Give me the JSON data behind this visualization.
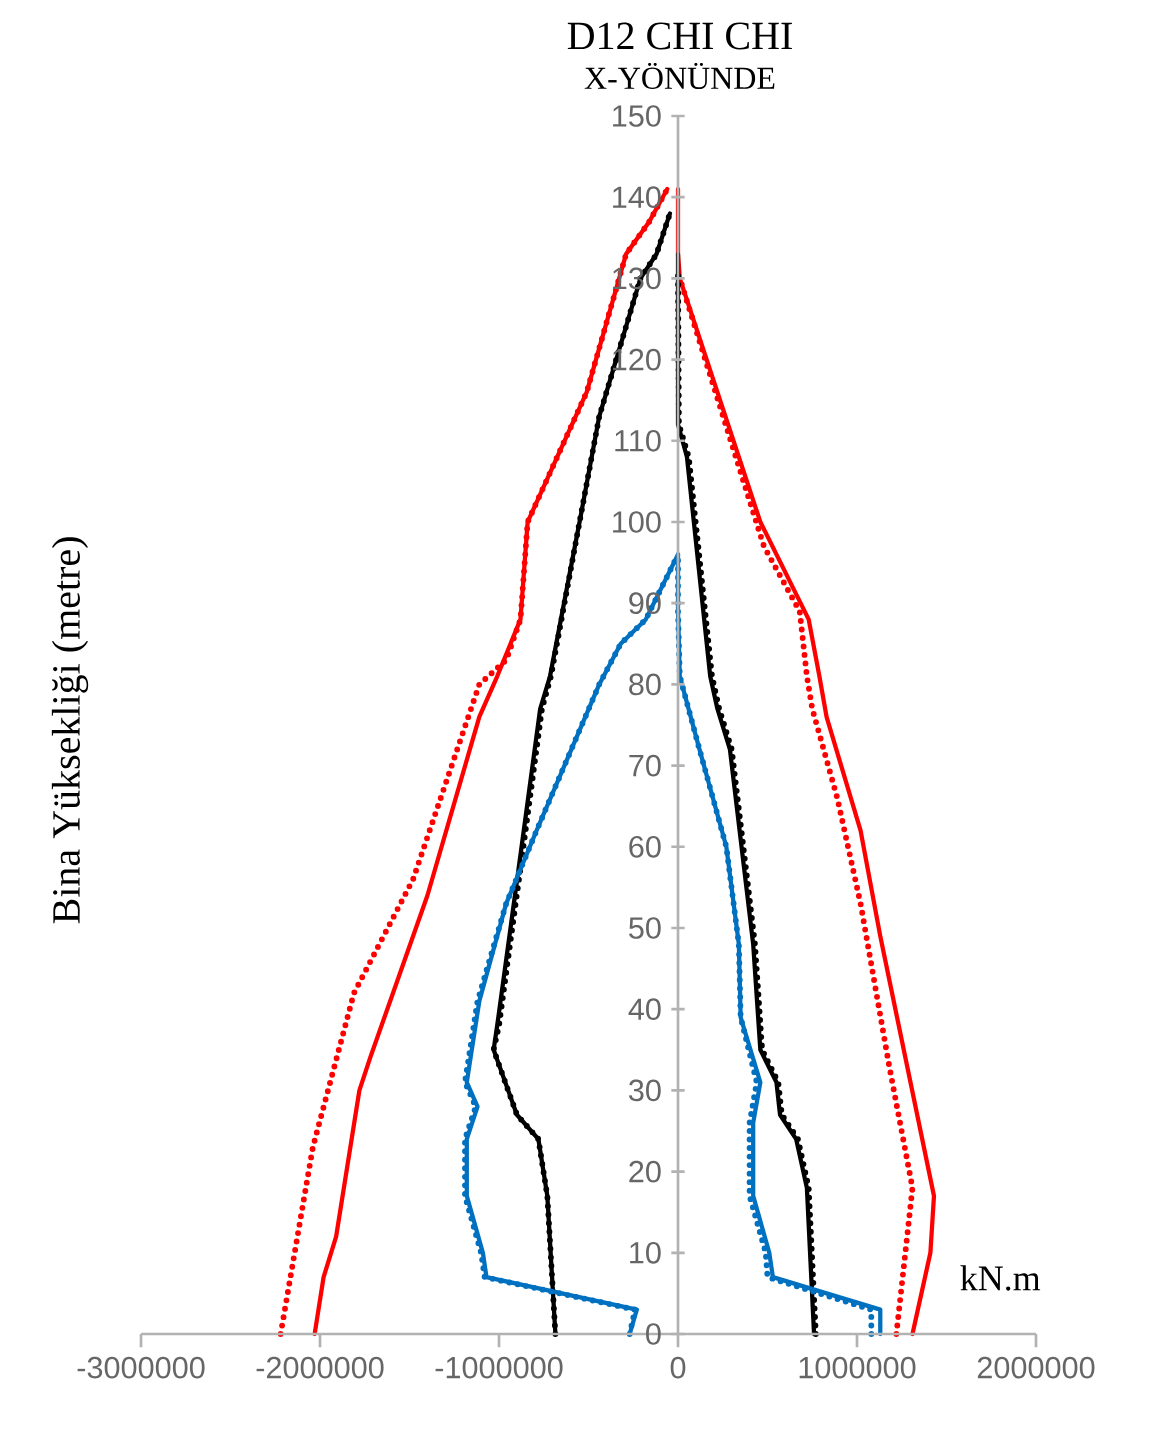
{
  "chart_data": {
    "type": "line",
    "title": "D12 CHI CHI",
    "subtitle": "X-YÖNÜNDE",
    "ylabel": "Bina Yüksekliği (metre)",
    "annotations": [
      "kN.m"
    ],
    "xlim": [
      -3000000,
      2000000
    ],
    "ylim": [
      0,
      150
    ],
    "xticks": [
      -3000000,
      -2000000,
      -1000000,
      0,
      1000000,
      2000000
    ],
    "yticks": [
      0,
      10,
      20,
      30,
      40,
      50,
      60,
      70,
      80,
      90,
      100,
      110,
      120,
      130,
      140,
      150
    ],
    "grid": false,
    "marker": "none",
    "series": [
      {
        "color": "#ff0000",
        "line_style": "solid",
        "x": [
          -2030000,
          -1980000,
          -1910000,
          -1780000,
          -1720000,
          -1400000,
          -1110000,
          -1010000,
          -880000,
          -840000,
          -510000,
          -290000,
          -160000,
          -60000
        ],
        "values": [
          0,
          7,
          12,
          30,
          34,
          54,
          76,
          81,
          88,
          100,
          116,
          133,
          137,
          141
        ]
      },
      {
        "color": "#ff0000",
        "line_style": "dotted",
        "x": [
          -2220000,
          -2040000,
          -1810000,
          -1480000,
          -1110000,
          -960000,
          -880000,
          -840000,
          -510000,
          -290000,
          -160000,
          -60000
        ],
        "values": [
          0,
          23,
          42,
          56,
          80,
          83,
          88,
          100,
          116,
          133,
          137,
          141
        ]
      },
      {
        "color": "#ff0000",
        "line_style": "solid",
        "x": [
          1310000,
          1410000,
          1430000,
          1130000,
          1020000,
          830000,
          790000,
          730000,
          460000,
          10000,
          0,
          0
        ],
        "values": [
          0,
          10,
          17,
          49,
          62,
          76,
          81,
          88,
          100,
          130,
          133,
          141
        ]
      },
      {
        "color": "#ff0000",
        "line_style": "dotted",
        "x": [
          1220000,
          1310000,
          1180000,
          1020000,
          890000,
          750000,
          720000,
          680000,
          480000,
          10000
        ],
        "values": [
          0,
          18,
          33,
          53,
          66,
          77,
          81,
          89,
          97,
          130
        ]
      },
      {
        "color": "#000000",
        "line_style": "solid",
        "x": [
          -685000,
          -730000,
          -780000,
          -900000,
          -1030000,
          -1010000,
          -880000,
          -770000,
          -715000,
          -550000,
          -440000,
          -210000,
          -120000,
          -45000
        ],
        "values": [
          0,
          17,
          24,
          27,
          35,
          38,
          59,
          77,
          81,
          100,
          113,
          130,
          133,
          138
        ]
      },
      {
        "color": "#000000",
        "line_style": "dotted",
        "x": [
          -685000,
          -730000,
          -780000,
          -900000,
          -1030000,
          -1000000,
          -870000,
          -760000,
          -710000,
          -550000,
          -440000,
          -210000,
          -120000,
          -45000
        ],
        "values": [
          0,
          17,
          24,
          27,
          35,
          38,
          59,
          77,
          81,
          100,
          113,
          130,
          133,
          138
        ]
      },
      {
        "color": "#000000",
        "line_style": "solid",
        "x": [
          760000,
          720000,
          660000,
          570000,
          550000,
          460000,
          420000,
          290000,
          220000,
          180000,
          50000,
          0,
          0
        ],
        "values": [
          0,
          18,
          24,
          27,
          31,
          35,
          48,
          72,
          77,
          81,
          108,
          112,
          133
        ]
      },
      {
        "color": "#000000",
        "line_style": "dotted",
        "x": [
          770000,
          730000,
          670000,
          580000,
          560000,
          470000,
          430000,
          300000,
          230000,
          190000,
          60000,
          5000,
          0
        ],
        "values": [
          0,
          18,
          24,
          27,
          31,
          35,
          48,
          72,
          77,
          81,
          108,
          112,
          131
        ]
      },
      {
        "color": "#0070c0",
        "line_style": "solid",
        "x": [
          -270000,
          -230000,
          -1070000,
          -1090000,
          -1180000,
          -1180000,
          -1120000,
          -1180000,
          -1110000,
          -960000,
          -790000,
          -440000,
          -320000,
          -180000,
          0
        ],
        "values": [
          0,
          3,
          7,
          10,
          17,
          24,
          28,
          31,
          41,
          53,
          62,
          80,
          85,
          88,
          96
        ]
      },
      {
        "color": "#0070c0",
        "line_style": "dotted",
        "x": [
          -270000,
          -240000,
          -1080000,
          -1100000,
          -1190000,
          -1190000,
          -1130000,
          -1190000,
          -1120000,
          -960000,
          -790000,
          -440000,
          -320000,
          -180000,
          0
        ],
        "values": [
          0,
          3,
          7,
          10,
          17,
          24,
          28,
          31,
          41,
          53,
          62,
          80,
          85,
          88,
          96
        ]
      },
      {
        "color": "#0070c0",
        "line_style": "solid",
        "x": [
          1130000,
          1130000,
          530000,
          510000,
          420000,
          420000,
          460000,
          350000,
          340000,
          270000,
          120000,
          10000,
          0,
          0
        ],
        "values": [
          0,
          3,
          7,
          10,
          17,
          26,
          31,
          39,
          48,
          60,
          72,
          81,
          89,
          96
        ]
      },
      {
        "color": "#0070c0",
        "line_style": "dotted",
        "x": [
          1080000,
          1080000,
          500000,
          490000,
          400000,
          400000,
          440000,
          350000,
          340000,
          270000,
          120000,
          10000,
          0,
          0
        ],
        "values": [
          0,
          3,
          7,
          10,
          17,
          26,
          31,
          39,
          48,
          60,
          72,
          81,
          89,
          96
        ]
      }
    ]
  }
}
